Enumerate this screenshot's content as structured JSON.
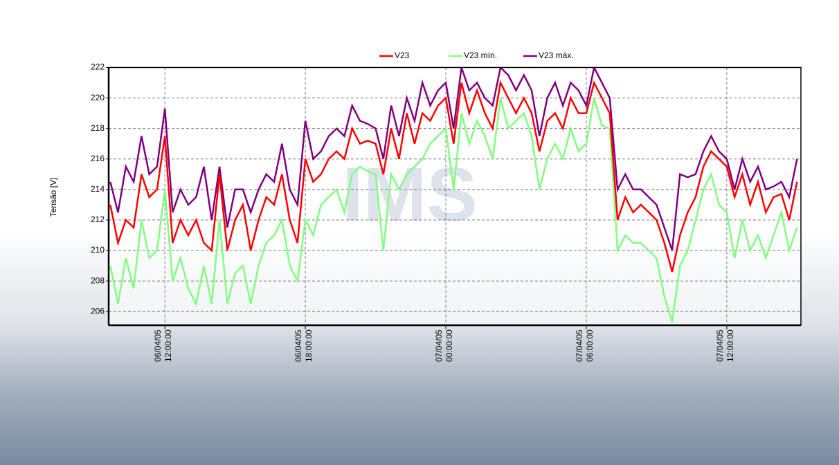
{
  "chart_data": {
    "type": "line",
    "watermark": "IMS",
    "y_label": "Tensão [V]",
    "x": [
      "2005-04-06T09:40",
      "2005-04-06T10:00",
      "2005-04-06T10:20",
      "2005-04-06T10:40",
      "2005-04-06T11:00",
      "2005-04-06T11:20",
      "2005-04-06T11:40",
      "2005-04-06T12:00",
      "2005-04-06T12:20",
      "2005-04-06T12:40",
      "2005-04-06T13:00",
      "2005-04-06T13:20",
      "2005-04-06T13:40",
      "2005-04-06T14:00",
      "2005-04-06T14:20",
      "2005-04-06T14:40",
      "2005-04-06T15:00",
      "2005-04-06T15:20",
      "2005-04-06T15:40",
      "2005-04-06T16:00",
      "2005-04-06T16:20",
      "2005-04-06T16:40",
      "2005-04-06T17:00",
      "2005-04-06T17:20",
      "2005-04-06T17:40",
      "2005-04-06T18:00",
      "2005-04-06T18:20",
      "2005-04-06T18:40",
      "2005-04-06T19:00",
      "2005-04-06T19:20",
      "2005-04-06T19:40",
      "2005-04-06T20:00",
      "2005-04-06T20:20",
      "2005-04-06T20:40",
      "2005-04-06T21:00",
      "2005-04-06T21:20",
      "2005-04-06T21:40",
      "2005-04-06T22:00",
      "2005-04-06T22:20",
      "2005-04-06T22:40",
      "2005-04-06T23:00",
      "2005-04-06T23:20",
      "2005-04-06T23:40",
      "2005-04-07T00:00",
      "2005-04-07T00:20",
      "2005-04-07T00:40",
      "2005-04-07T01:00",
      "2005-04-07T01:20",
      "2005-04-07T01:40",
      "2005-04-07T02:00",
      "2005-04-07T02:20",
      "2005-04-07T02:40",
      "2005-04-07T03:00",
      "2005-04-07T03:20",
      "2005-04-07T03:40",
      "2005-04-07T04:00",
      "2005-04-07T04:20",
      "2005-04-07T04:40",
      "2005-04-07T05:00",
      "2005-04-07T05:20",
      "2005-04-07T05:40",
      "2005-04-07T06:00",
      "2005-04-07T06:20",
      "2005-04-07T06:40",
      "2005-04-07T07:00",
      "2005-04-07T07:20",
      "2005-04-07T07:40",
      "2005-04-07T08:00",
      "2005-04-07T08:20",
      "2005-04-07T08:40",
      "2005-04-07T09:00",
      "2005-04-07T09:20",
      "2005-04-07T09:40",
      "2005-04-07T10:00",
      "2005-04-07T10:20",
      "2005-04-07T10:40",
      "2005-04-07T11:00",
      "2005-04-07T11:20",
      "2005-04-07T11:40",
      "2005-04-07T12:00",
      "2005-04-07T12:20",
      "2005-04-07T12:40",
      "2005-04-07T13:00",
      "2005-04-07T13:20",
      "2005-04-07T13:40",
      "2005-04-07T14:00",
      "2005-04-07T14:20",
      "2005-04-07T14:40",
      "2005-04-07T15:00"
    ],
    "series": [
      {
        "name": "V23",
        "color": "#ff0000",
        "values": [
          213,
          210.5,
          212,
          211.5,
          215,
          213.5,
          214,
          217.5,
          210.5,
          212,
          211,
          212,
          210.5,
          210,
          215,
          210,
          212,
          213,
          210,
          212,
          213.5,
          213,
          215,
          212,
          210.5,
          216,
          214.5,
          215,
          216,
          216.5,
          216,
          218,
          217,
          217.2,
          217,
          215,
          218,
          216,
          219,
          217,
          219,
          218.5,
          219.5,
          220,
          217,
          221,
          219,
          220.5,
          219,
          218,
          221,
          220,
          219,
          220,
          219,
          216.5,
          218.5,
          219,
          218,
          220,
          219,
          219,
          221,
          220,
          219,
          212,
          213.5,
          212.5,
          213,
          212.5,
          212,
          210.5,
          208.6,
          211,
          212.5,
          213.5,
          215.5,
          216.5,
          216,
          215.5,
          213.5,
          215,
          213,
          214.5,
          212.5,
          213.5,
          213.7,
          212,
          214.5
        ]
      },
      {
        "name": "V23 mín.",
        "color": "#80ff80",
        "values": [
          209,
          206.5,
          209.5,
          207.5,
          212,
          209.5,
          210,
          214,
          208,
          209.5,
          207.5,
          206.5,
          209,
          206.5,
          212,
          206.5,
          208.5,
          209,
          206.5,
          209,
          210.5,
          211,
          212,
          209,
          208,
          212,
          211,
          213,
          213.5,
          214,
          212.5,
          215,
          215.5,
          215.2,
          215,
          210,
          215,
          214,
          215,
          215.5,
          216,
          217,
          217.5,
          218,
          214,
          219,
          217,
          218.5,
          217.5,
          216,
          220,
          218,
          218.5,
          219,
          217.5,
          214,
          216,
          217,
          216,
          218,
          216.5,
          217,
          220,
          218.2,
          218,
          210,
          211,
          210.5,
          210.5,
          210,
          209.5,
          207,
          205.3,
          209,
          210,
          212,
          214,
          215,
          213,
          212.5,
          209.5,
          212,
          210,
          211,
          209.5,
          211,
          212.5,
          210,
          211.5
        ]
      },
      {
        "name": "V23 máx.",
        "color": "#800080",
        "values": [
          214.5,
          212.5,
          215.5,
          214.5,
          217.5,
          215,
          215.5,
          219.3,
          212.5,
          214,
          213,
          213.5,
          215.5,
          212,
          215.5,
          211.5,
          214,
          214,
          212.5,
          214,
          215,
          214.5,
          217,
          214,
          213,
          218.5,
          216,
          216.5,
          217.5,
          218,
          217.5,
          219.5,
          218.5,
          218.3,
          218,
          216,
          219.5,
          217.5,
          220,
          218.5,
          221,
          219.5,
          220.5,
          221,
          218,
          222,
          220.5,
          221,
          220,
          219.5,
          222,
          221.5,
          220.5,
          221.5,
          220.5,
          217.5,
          220,
          221,
          219.5,
          221,
          220.5,
          219.5,
          222,
          221,
          220,
          214,
          215,
          214,
          214,
          213.5,
          213,
          211.5,
          210,
          215,
          214.8,
          215,
          216.5,
          217.5,
          216.5,
          216,
          214,
          216,
          214.5,
          215.5,
          214,
          214.2,
          214.5,
          213.5,
          216
        ]
      }
    ],
    "xlim": [
      "2005-04-06T09:36",
      "2005-04-07T15:10"
    ],
    "xticks": [
      {
        "value": "2005-04-06T12:00",
        "label": "06/04/05 12:00:00"
      },
      {
        "value": "2005-04-06T18:00",
        "label": "06/04/05 18:00:00"
      },
      {
        "value": "2005-04-07T00:00",
        "label": "07/04/05 00:00:00"
      },
      {
        "value": "2005-04-07T06:00",
        "label": "07/04/05 06:00:00"
      },
      {
        "value": "2005-04-07T12:00",
        "label": "07/04/05 12:00:00"
      }
    ],
    "ylim": [
      205.1,
      222
    ],
    "yticks": [
      206,
      208,
      210,
      212,
      214,
      216,
      218,
      220,
      222
    ],
    "grid": true
  }
}
